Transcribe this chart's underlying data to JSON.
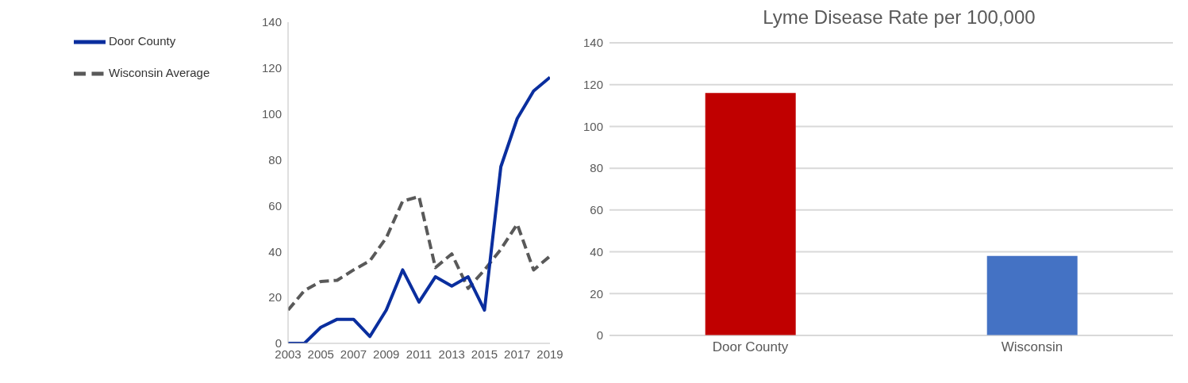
{
  "chart_data": [
    {
      "type": "line",
      "x": [
        2003,
        2004,
        2005,
        2006,
        2007,
        2008,
        2009,
        2010,
        2011,
        2012,
        2013,
        2014,
        2015,
        2016,
        2017,
        2018,
        2019
      ],
      "series": [
        {
          "name": "Wisconsin Average",
          "color": "#595959",
          "line_style": "dashed",
          "values": [
            14.5,
            23,
            27,
            27.5,
            32,
            36,
            46,
            62,
            64,
            33,
            39,
            24,
            32,
            41,
            52,
            32,
            38
          ]
        },
        {
          "name": "Door County",
          "color": "#0a2e9e",
          "line_style": "solid",
          "values": [
            0,
            0,
            7,
            10.5,
            10.5,
            3,
            14.5,
            32,
            18,
            29,
            25,
            29,
            14.5,
            77,
            98,
            110,
            116
          ]
        }
      ],
      "xlim": [
        2003,
        2019
      ],
      "xticks": [
        2003,
        2005,
        2007,
        2009,
        2011,
        2013,
        2015,
        2017,
        2019
      ],
      "ylim": [
        0,
        140
      ],
      "yticks": [
        0,
        20,
        40,
        60,
        80,
        100,
        120,
        140
      ],
      "grid": false,
      "legend": "top left",
      "marker": "none"
    },
    {
      "type": "bar",
      "title": "Lyme Disease Rate per 100,000",
      "categories": [
        "Door County",
        "Wisconsin"
      ],
      "values": [
        116,
        38
      ],
      "colors": [
        "#c00000",
        "#4472c4"
      ],
      "ylim": [
        0,
        140
      ],
      "yticks": [
        0,
        20,
        40,
        60,
        80,
        100,
        120,
        140
      ],
      "grid": "y",
      "legend": false
    }
  ]
}
